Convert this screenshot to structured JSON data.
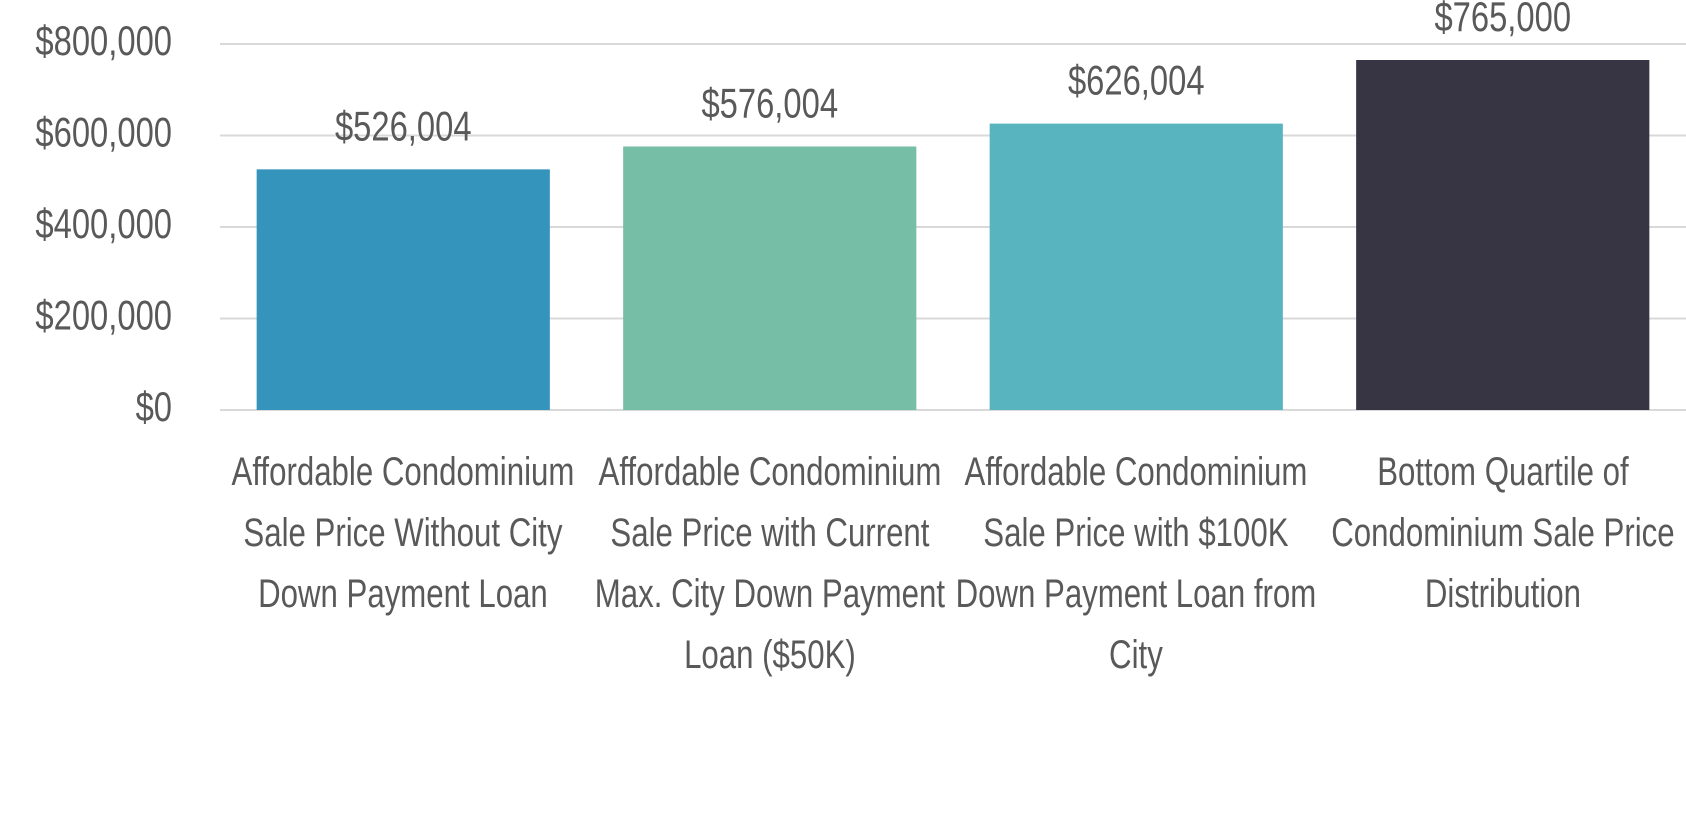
{
  "chart_data": {
    "type": "bar",
    "categories": [
      "Affordable Condominium Sale Price Without City Down Payment Loan",
      "Affordable Condominium Sale Price with Current Max. City Down Payment Loan ($50K)",
      "Affordable Condominium Sale Price with $100K Down Payment Loan from City",
      "Bottom Quartile of Condominium Sale Price Distribution"
    ],
    "values": [
      526004,
      576004,
      626004,
      765000
    ],
    "value_labels": [
      "$526,004",
      "$576,004",
      "$626,004",
      "$765,000"
    ],
    "colors": [
      "#3594bb",
      "#76bea6",
      "#58b5c0",
      "#373444"
    ],
    "ylim": [
      0,
      800000
    ],
    "yticks": [
      {
        "value": 0,
        "label": "$0"
      },
      {
        "value": 200000,
        "label": "$200,000"
      },
      {
        "value": 400000,
        "label": "$400,000"
      },
      {
        "value": 600000,
        "label": "$600,000"
      },
      {
        "value": 800000,
        "label": "$800,000"
      }
    ],
    "grid": true
  }
}
